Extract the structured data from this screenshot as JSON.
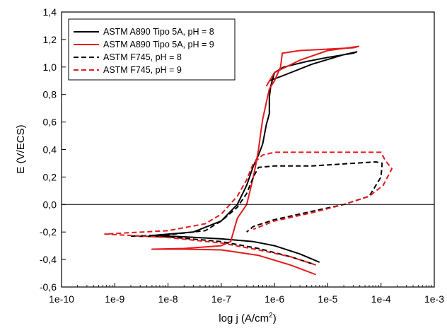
{
  "chart_data": {
    "type": "line",
    "xlabel": "log j (A/cm",
    "xlabel_sup": "2",
    "xlabel_end": ")",
    "ylabel": "E (V/ECS)",
    "x_scale": "log",
    "xlim": [
      1e-10,
      0.001
    ],
    "ylim": [
      -0.6,
      1.4
    ],
    "x_ticks": [
      1e-10,
      1e-09,
      1e-08,
      1e-07,
      1e-06,
      1e-05,
      0.0001,
      0.001
    ],
    "x_tick_labels": [
      "1e-10",
      "1e-9",
      "1e-8",
      "1e-7",
      "1e-6",
      "1e-5",
      "1e-4",
      "1e-3"
    ],
    "y_ticks": [
      -0.6,
      -0.4,
      -0.2,
      0.0,
      0.2,
      0.4,
      0.6,
      0.8,
      1.0,
      1.2,
      1.4
    ],
    "y_tick_labels": [
      "-0,6",
      "-0,4",
      "-0,2",
      "0,0",
      "0,2",
      "0,4",
      "0,6",
      "0,8",
      "1,0",
      "1,2",
      "1,4"
    ],
    "reference_line_y": 0.0,
    "grid": false,
    "legend_position": "top-left",
    "series": [
      {
        "name": "ASTM A890 Tipo 5A, pH = 8",
        "color": "#000000",
        "dash": "solid",
        "x": [
          7e-06,
          3e-06,
          1e-06,
          4e-07,
          1e-07,
          2e-08,
          5e-09,
          3e-08,
          1e-07,
          2e-07,
          3e-07,
          4e-07,
          5e-07,
          6e-07,
          7e-07,
          8e-07,
          8e-07,
          8.5e-07,
          1e-06,
          1.5e-06,
          4e-06,
          1e-05,
          3e-05,
          3.5e-05,
          2e-05,
          5e-06,
          1.5e-06,
          8e-07
        ],
        "y": [
          -0.42,
          -0.36,
          -0.3,
          -0.27,
          -0.25,
          -0.235,
          -0.225,
          -0.2,
          -0.12,
          0.0,
          0.14,
          0.28,
          0.36,
          0.44,
          0.58,
          0.66,
          0.78,
          0.86,
          0.96,
          1.0,
          1.04,
          1.07,
          1.1,
          1.11,
          1.09,
          1.02,
          0.94,
          0.9
        ]
      },
      {
        "name": "ASTM A890 Tipo 5A, pH = 9",
        "color": "#e41a1c",
        "dash": "solid",
        "x": [
          6e-06,
          2e-06,
          5e-07,
          1e-07,
          2e-08,
          5e-09,
          2e-08,
          1e-07,
          1.5e-07,
          2e-07,
          3e-07,
          4e-07,
          4.5e-07,
          5e-07,
          5.5e-07,
          6e-07,
          7e-07,
          8e-07,
          1e-06,
          1.3e-06,
          1.4e-06,
          3e-06,
          1e-05,
          3e-05,
          3.8e-05,
          1e-05,
          3e-06,
          1e-06,
          7e-07
        ],
        "y": [
          -0.51,
          -0.44,
          -0.37,
          -0.33,
          -0.325,
          -0.325,
          -0.32,
          -0.3,
          -0.27,
          -0.1,
          0.0,
          0.2,
          0.3,
          0.4,
          0.52,
          0.62,
          0.74,
          0.84,
          0.9,
          1.0,
          1.1,
          1.12,
          1.13,
          1.14,
          1.15,
          1.12,
          1.05,
          0.96,
          0.86
        ]
      },
      {
        "name": "ASTM F745, pH = 8",
        "color": "#000000",
        "dash": "dashed",
        "x": [
          5e-06,
          2e-06,
          5e-07,
          1e-07,
          1e-08,
          2e-09,
          1e-08,
          5e-08,
          1e-07,
          2e-07,
          3e-07,
          4e-07,
          5e-07,
          1e-06,
          5e-06,
          3e-05,
          8e-05,
          0.000105,
          0.0001,
          6e-05,
          2e-05,
          5e-06,
          1e-06,
          4e-07,
          3e-07
        ],
        "y": [
          -0.43,
          -0.38,
          -0.32,
          -0.27,
          -0.235,
          -0.23,
          -0.22,
          -0.19,
          -0.12,
          -0.02,
          0.08,
          0.2,
          0.27,
          0.28,
          0.28,
          0.3,
          0.31,
          0.3,
          0.2,
          0.06,
          0.0,
          -0.05,
          -0.11,
          -0.16,
          -0.2
        ]
      },
      {
        "name": "ASTM F745, pH = 9",
        "color": "#e41a1c",
        "dash": "dashed",
        "x": [
          6e-06,
          2e-06,
          5e-07,
          1e-07,
          1e-08,
          6.5e-10,
          1e-08,
          5e-08,
          1e-07,
          2e-07,
          3e-07,
          4e-07,
          6e-07,
          1e-06,
          5e-06,
          3e-05,
          0.0001,
          0.00012,
          0.00016,
          0.00011,
          6e-05,
          2e-05,
          5e-06,
          1e-06,
          4e-07
        ],
        "y": [
          -0.44,
          -0.38,
          -0.33,
          -0.28,
          -0.24,
          -0.215,
          -0.19,
          -0.14,
          -0.07,
          0.06,
          0.18,
          0.3,
          0.36,
          0.38,
          0.38,
          0.38,
          0.38,
          0.32,
          0.26,
          0.14,
          0.06,
          0.0,
          -0.06,
          -0.12,
          -0.18
        ]
      }
    ]
  }
}
